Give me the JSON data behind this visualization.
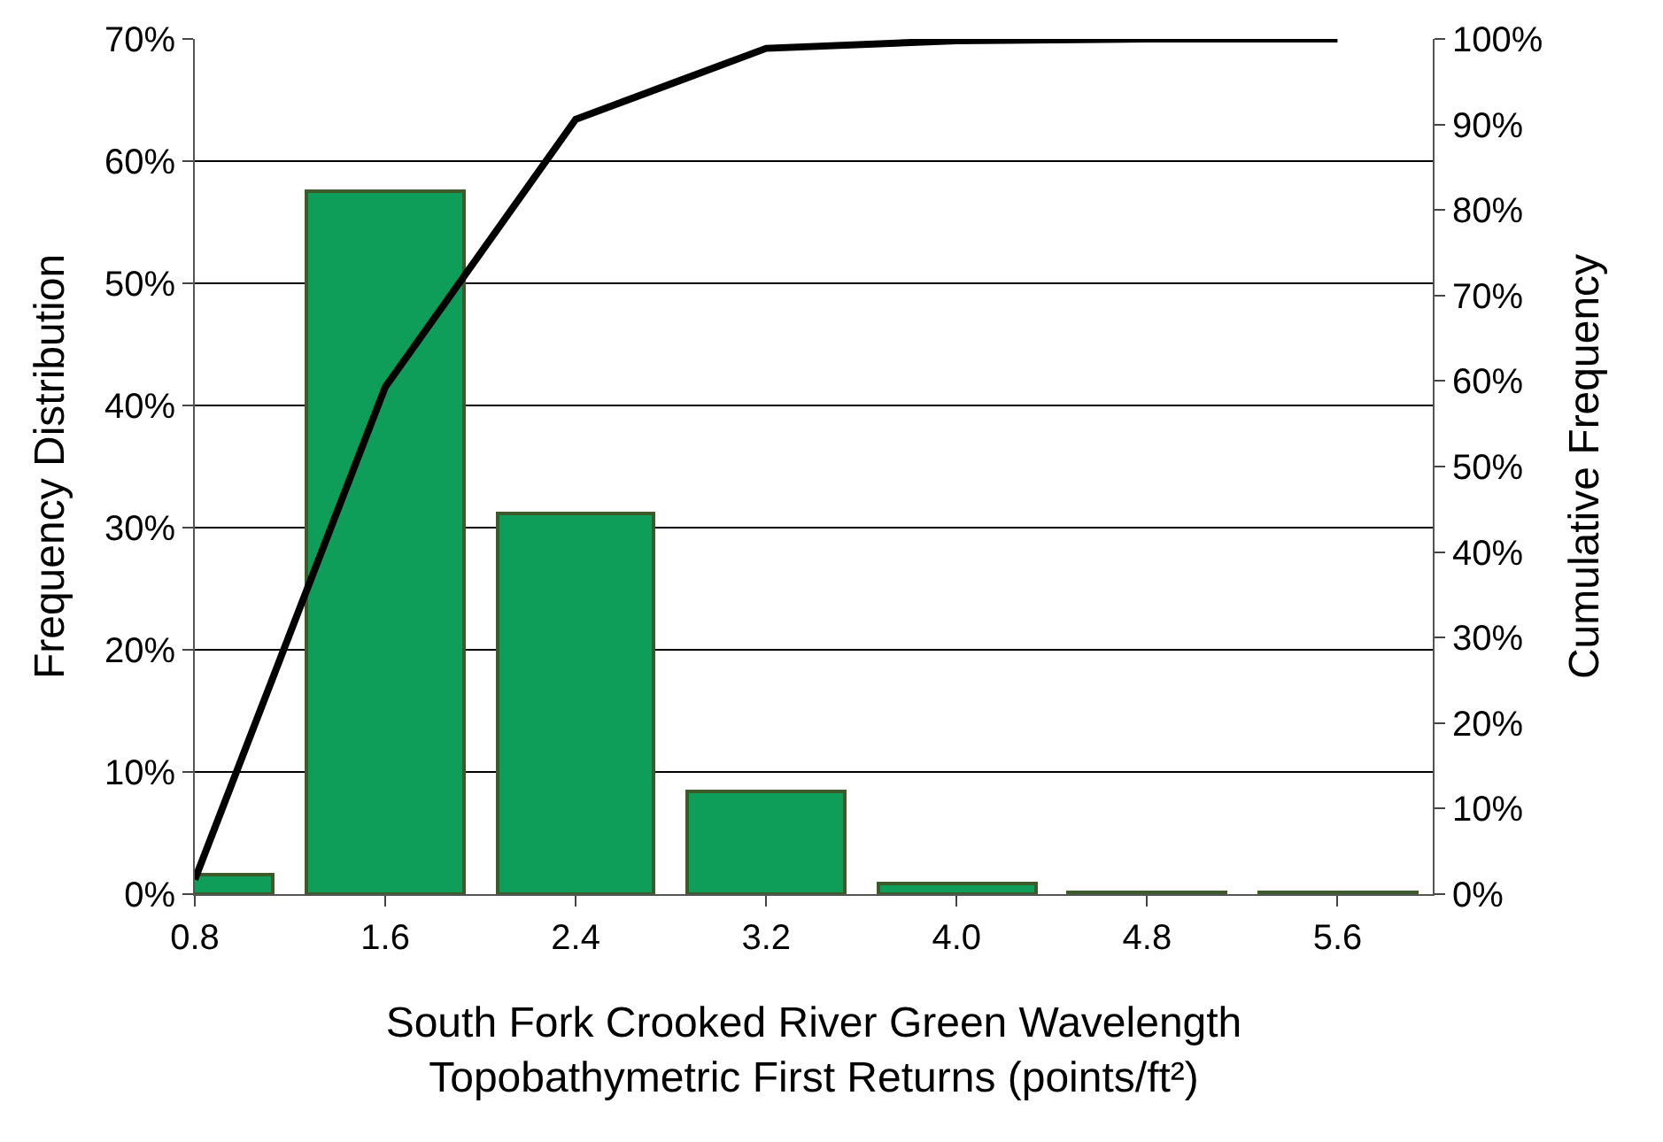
{
  "chart_data": {
    "type": "bar",
    "xlabel": "South Fork Crooked River Green Wavelength\nTopobathymetric First Returns (points/ft²)",
    "ylabel": "Frequency Distribution",
    "y2label": "Cumulative Frequency",
    "x": [
      0.8,
      1.6,
      2.4,
      3.2,
      4.0,
      4.8,
      5.6
    ],
    "xlim": [
      0.8,
      6.0
    ],
    "xticks": [
      {
        "value": 0.8,
        "label": "0.8"
      },
      {
        "value": 1.6,
        "label": "1.6"
      },
      {
        "value": 2.4,
        "label": "2.4"
      },
      {
        "value": 3.2,
        "label": "3.2"
      },
      {
        "value": 4.0,
        "label": "4.0"
      },
      {
        "value": 4.8,
        "label": "4.8"
      },
      {
        "value": 5.6,
        "label": "5.6"
      }
    ],
    "series": [
      {
        "color": "#0f9e5a",
        "values": [
          1.6,
          57.5,
          31.1,
          8.4,
          0.8,
          0.2,
          0.1
        ]
      },
      {
        "type": "line",
        "axis": "y2",
        "color": "#000000",
        "values": [
          1.7,
          59.3,
          90.6,
          98.9,
          99.8,
          100,
          100
        ]
      }
    ],
    "ylim": [
      0,
      70
    ],
    "yticks": [
      {
        "value": 0,
        "label": "0%"
      },
      {
        "value": 10,
        "label": "10%"
      },
      {
        "value": 20,
        "label": "20%"
      },
      {
        "value": 30,
        "label": "30%"
      },
      {
        "value": 40,
        "label": "40%"
      },
      {
        "value": 50,
        "label": "50%"
      },
      {
        "value": 60,
        "label": "60%"
      },
      {
        "value": 70,
        "label": "70%"
      }
    ],
    "y2lim": [
      0,
      100
    ],
    "y2ticks": [
      {
        "value": 0,
        "label": "0%"
      },
      {
        "value": 10,
        "label": "10%"
      },
      {
        "value": 20,
        "label": "20%"
      },
      {
        "value": 30,
        "label": "30%"
      },
      {
        "value": 40,
        "label": "40%"
      },
      {
        "value": 50,
        "label": "50%"
      },
      {
        "value": 60,
        "label": "60%"
      },
      {
        "value": 70,
        "label": "70%"
      },
      {
        "value": 80,
        "label": "80%"
      },
      {
        "value": 90,
        "label": "90%"
      },
      {
        "value": 100,
        "label": "100%"
      }
    ],
    "grid": "y",
    "marker": "none",
    "line_style": "solid"
  }
}
